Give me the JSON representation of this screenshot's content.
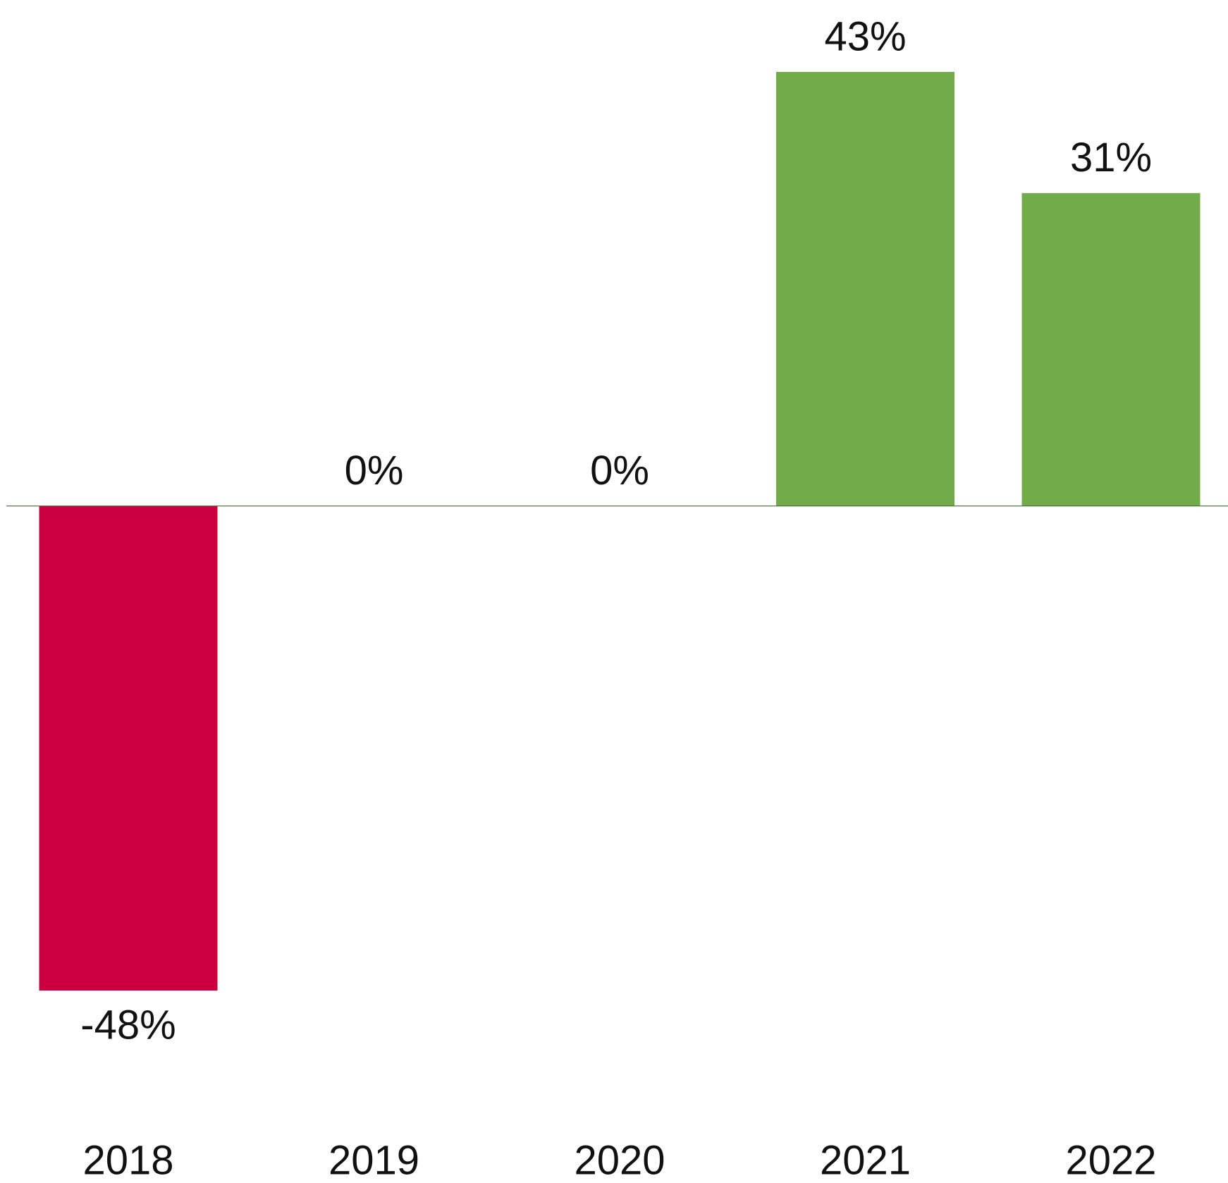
{
  "chart_data": {
    "type": "bar",
    "categories": [
      "2018",
      "2019",
      "2020",
      "2021",
      "2022"
    ],
    "values": [
      -48,
      0,
      0,
      43,
      31
    ],
    "value_labels": [
      "-48%",
      "0%",
      "0%",
      "43%",
      "31%"
    ],
    "colors": [
      "#cc0040",
      "#72ac4a",
      "#72ac4a",
      "#72ac4a",
      "#72ac4a"
    ],
    "grid": false
  }
}
